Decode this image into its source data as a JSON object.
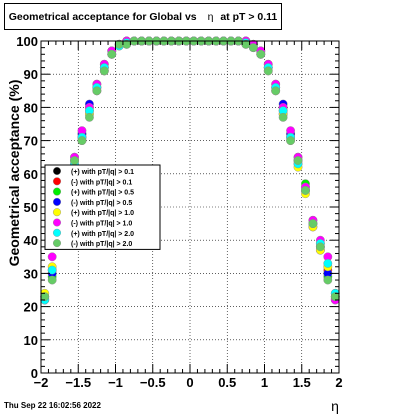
{
  "title": {
    "before_symbol": "Geometrical acceptance for Global vs",
    "symbol": "η",
    "after_symbol": "at pT > 0.11"
  },
  "timestamp": "Thu Sep 22 16:02:56 2022",
  "chart_data": {
    "type": "scatter",
    "xlabel": "η",
    "ylabel": "Geometrical acceptance (%)",
    "xlim": [
      -2,
      2
    ],
    "ylim": [
      0,
      100
    ],
    "x_ticks": [
      "−2",
      "−1.5",
      "−1",
      "−0.5",
      "0",
      "0.5",
      "1",
      "1.5",
      "2"
    ],
    "y_ticks": [
      "0",
      "10",
      "20",
      "30",
      "40",
      "50",
      "60",
      "70",
      "80",
      "90",
      "100"
    ],
    "grid": true,
    "legend_placement": "middle-left",
    "x": [
      -1.95,
      -1.85,
      -1.75,
      -1.65,
      -1.55,
      -1.45,
      -1.35,
      -1.25,
      -1.15,
      -1.05,
      -0.95,
      -0.85,
      -0.75,
      -0.65,
      -0.55,
      -0.45,
      -0.35,
      -0.25,
      -0.15,
      -0.05,
      0.05,
      0.15,
      0.25,
      0.35,
      0.45,
      0.55,
      0.65,
      0.75,
      0.85,
      0.95,
      1.05,
      1.15,
      1.25,
      1.35,
      1.45,
      1.55,
      1.65,
      1.75,
      1.85,
      1.95
    ],
    "series": [
      {
        "name": "(+) with pT/|q| > 0.1",
        "color": "#000000",
        "marker": "circle",
        "values": [
          22.5,
          30,
          45,
          55,
          64,
          72,
          80,
          86,
          92,
          97,
          99,
          99.5,
          100,
          100,
          100,
          100,
          100,
          100,
          100,
          100,
          100,
          100,
          100,
          100,
          100,
          100,
          100,
          100,
          99,
          97,
          92,
          86,
          80,
          72,
          64,
          55,
          45,
          38,
          30,
          22.5
        ]
      },
      {
        "name": "(-) with pT/|q| > 0.1",
        "color": "#ff0000",
        "marker": "circle",
        "values": [
          23,
          31,
          44,
          56,
          63,
          71,
          79,
          87,
          93,
          97,
          99,
          100,
          100,
          100,
          100,
          100,
          100,
          100,
          100,
          100,
          100,
          100,
          100,
          100,
          100,
          100,
          100,
          99.5,
          98.5,
          96.5,
          93,
          87,
          79,
          71,
          63,
          56,
          44,
          37,
          31,
          23
        ]
      },
      {
        "name": "(+) with pT/|q| > 0.5",
        "color": "#00ee00",
        "marker": "circle",
        "values": [
          22,
          29,
          46,
          57,
          65,
          71,
          78,
          85,
          91,
          96,
          98.5,
          99,
          100,
          100,
          100,
          100,
          100,
          100,
          100,
          100,
          100,
          100,
          100,
          100,
          100,
          100,
          100,
          99,
          98,
          96,
          92,
          85,
          78,
          71,
          65,
          57,
          46,
          39,
          29,
          22
        ]
      },
      {
        "name": "(-) with pT/|q| > 0.5",
        "color": "#0000ff",
        "marker": "circle",
        "values": [
          23,
          30,
          45,
          55,
          64,
          72,
          81,
          86,
          92,
          97,
          99,
          100,
          100,
          100,
          100,
          100,
          100,
          100,
          100,
          100,
          100,
          100,
          100,
          100,
          100,
          100,
          100,
          100,
          98.5,
          97,
          92,
          86,
          81,
          72,
          64,
          55,
          45,
          38,
          30,
          23
        ]
      },
      {
        "name": "(+) with pT/|q| > 1.0",
        "color": "#ffff00",
        "marker": "circle",
        "values": [
          24,
          32,
          44,
          54,
          62,
          70,
          78,
          85,
          91,
          96,
          99,
          99.5,
          100,
          100,
          100,
          100,
          100,
          100,
          100,
          100,
          100,
          100,
          100,
          100,
          100,
          100,
          100,
          99.5,
          99,
          96,
          91,
          85,
          78,
          70,
          62,
          54,
          44,
          37,
          32,
          24
        ]
      },
      {
        "name": "(-) with pT/|q| > 1.0",
        "color": "#ff00ff",
        "marker": "circle",
        "values": [
          22,
          35,
          46,
          56,
          65,
          73,
          80,
          87,
          93,
          97,
          99,
          100,
          100,
          100,
          100,
          100,
          100,
          100,
          100,
          100,
          100,
          100,
          100,
          100,
          100,
          100,
          100,
          100,
          99,
          97,
          93,
          87,
          80,
          73,
          65,
          56,
          46,
          40,
          35,
          22
        ]
      },
      {
        "name": "(+) with pT/|q| > 2.0",
        "color": "#00ffff",
        "marker": "circle",
        "values": [
          22,
          31,
          45,
          55,
          63,
          71,
          79,
          86,
          92,
          96,
          98.5,
          99.5,
          100,
          100,
          100,
          100,
          100,
          100,
          100,
          100,
          100,
          100,
          100,
          100,
          100,
          100,
          100,
          99.5,
          98,
          96,
          92,
          86,
          79,
          71,
          63,
          55,
          45,
          39,
          33,
          24
        ]
      },
      {
        "name": "(-) with pT/|q| > 2.0",
        "color": "#66cc66",
        "marker": "circle",
        "values": [
          23,
          28,
          45,
          55,
          64,
          70,
          77,
          85,
          91,
          96,
          99,
          99,
          100,
          100,
          100,
          100,
          100,
          100,
          100,
          100,
          100,
          100,
          100,
          100,
          100,
          100,
          100,
          99,
          98,
          96,
          91,
          85,
          77,
          70,
          64,
          55,
          45,
          38,
          28,
          23
        ]
      }
    ]
  }
}
